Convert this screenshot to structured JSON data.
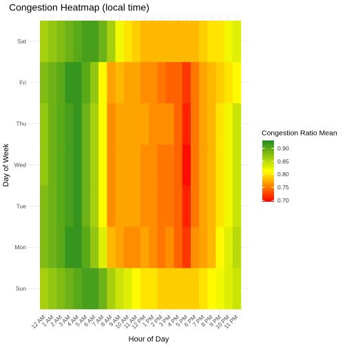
{
  "chart_data": {
    "type": "heatmap",
    "title": "Congestion Heatmap (local time)",
    "xlabel": "Hour of Day",
    "ylabel": "Day of Week",
    "x": [
      "12 AM",
      "1 AM",
      "2 AM",
      "3 AM",
      "4 AM",
      "5 AM",
      "6 AM",
      "7 AM",
      "8 AM",
      "9 AM",
      "10 AM",
      "11 AM",
      "12 PM",
      "1 PM",
      "2 PM",
      "3 PM",
      "4 PM",
      "5 PM",
      "6 PM",
      "7 PM",
      "8 PM",
      "9 PM",
      "10 PM",
      "11 PM"
    ],
    "y": [
      "Sun",
      "Mon",
      "Tue",
      "Wed",
      "Thu",
      "Fri",
      "Sat"
    ],
    "values": [
      [
        0.86,
        0.87,
        0.88,
        0.89,
        0.9,
        0.91,
        0.91,
        0.89,
        0.86,
        0.84,
        0.83,
        0.81,
        0.8,
        0.8,
        0.79,
        0.79,
        0.79,
        0.79,
        0.79,
        0.8,
        0.81,
        0.82,
        0.83,
        0.84
      ],
      [
        0.88,
        0.89,
        0.9,
        0.92,
        0.92,
        0.9,
        0.87,
        0.83,
        0.78,
        0.77,
        0.76,
        0.76,
        0.77,
        0.76,
        0.75,
        0.76,
        0.74,
        0.72,
        0.76,
        0.77,
        0.78,
        0.81,
        0.83,
        0.85
      ],
      [
        0.88,
        0.89,
        0.9,
        0.91,
        0.92,
        0.89,
        0.86,
        0.81,
        0.76,
        0.77,
        0.77,
        0.77,
        0.76,
        0.76,
        0.75,
        0.75,
        0.74,
        0.71,
        0.75,
        0.77,
        0.78,
        0.8,
        0.82,
        0.84
      ],
      [
        0.87,
        0.89,
        0.9,
        0.91,
        0.92,
        0.89,
        0.86,
        0.81,
        0.76,
        0.77,
        0.77,
        0.77,
        0.76,
        0.76,
        0.75,
        0.75,
        0.74,
        0.7,
        0.75,
        0.77,
        0.78,
        0.8,
        0.82,
        0.84
      ],
      [
        0.87,
        0.89,
        0.9,
        0.91,
        0.92,
        0.89,
        0.86,
        0.81,
        0.76,
        0.77,
        0.77,
        0.77,
        0.77,
        0.76,
        0.76,
        0.76,
        0.74,
        0.71,
        0.75,
        0.77,
        0.78,
        0.8,
        0.82,
        0.84
      ],
      [
        0.88,
        0.89,
        0.9,
        0.92,
        0.92,
        0.9,
        0.87,
        0.81,
        0.77,
        0.78,
        0.77,
        0.77,
        0.76,
        0.76,
        0.75,
        0.74,
        0.74,
        0.72,
        0.75,
        0.77,
        0.78,
        0.79,
        0.8,
        0.81
      ],
      [
        0.86,
        0.87,
        0.88,
        0.89,
        0.9,
        0.91,
        0.91,
        0.89,
        0.86,
        0.82,
        0.8,
        0.79,
        0.78,
        0.78,
        0.78,
        0.78,
        0.78,
        0.78,
        0.78,
        0.79,
        0.8,
        0.8,
        0.82,
        0.83
      ]
    ],
    "colorbar": {
      "title": "Congestion Ratio Mean",
      "ticks": [
        0.7,
        0.75,
        0.8,
        0.85,
        0.9
      ],
      "range": [
        0.695,
        0.93
      ],
      "colors": [
        "#ff0000",
        "#ffff00",
        "#228b22"
      ]
    },
    "grid": true
  }
}
